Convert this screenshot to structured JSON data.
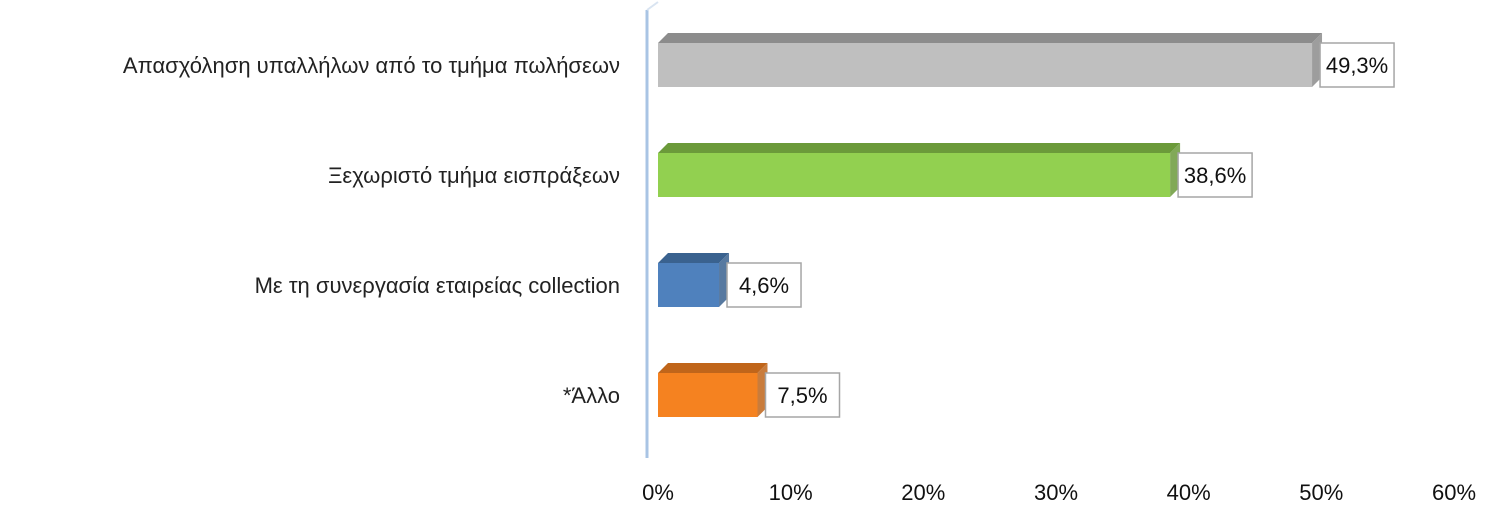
{
  "chart_data": {
    "type": "bar",
    "orientation": "horizontal",
    "categories": [
      "Απασχόληση υπαλλήλων από το τμήμα πωλήσεων",
      "Ξεχωριστό τμήμα εισπράξεων",
      "Με τη συνεργασία εταιρείας collection",
      "*Άλλο"
    ],
    "values": [
      49.3,
      38.6,
      4.6,
      7.5
    ],
    "data_labels": [
      "49,3%",
      "38,6%",
      "4,6%",
      "7,5%"
    ],
    "colors": [
      "#bfbfbf",
      "#92d050",
      "#4f81bd",
      "#f58220"
    ],
    "top_colors": [
      "#8c8c8c",
      "#6b9a3a",
      "#3a628f",
      "#c0651a"
    ],
    "xlim": [
      0,
      60
    ],
    "x_ticks": [
      "0%",
      "10%",
      "20%",
      "30%",
      "40%",
      "50%",
      "60%"
    ],
    "grid": false,
    "legend": "none",
    "axis_color": "#a9c4e4"
  }
}
